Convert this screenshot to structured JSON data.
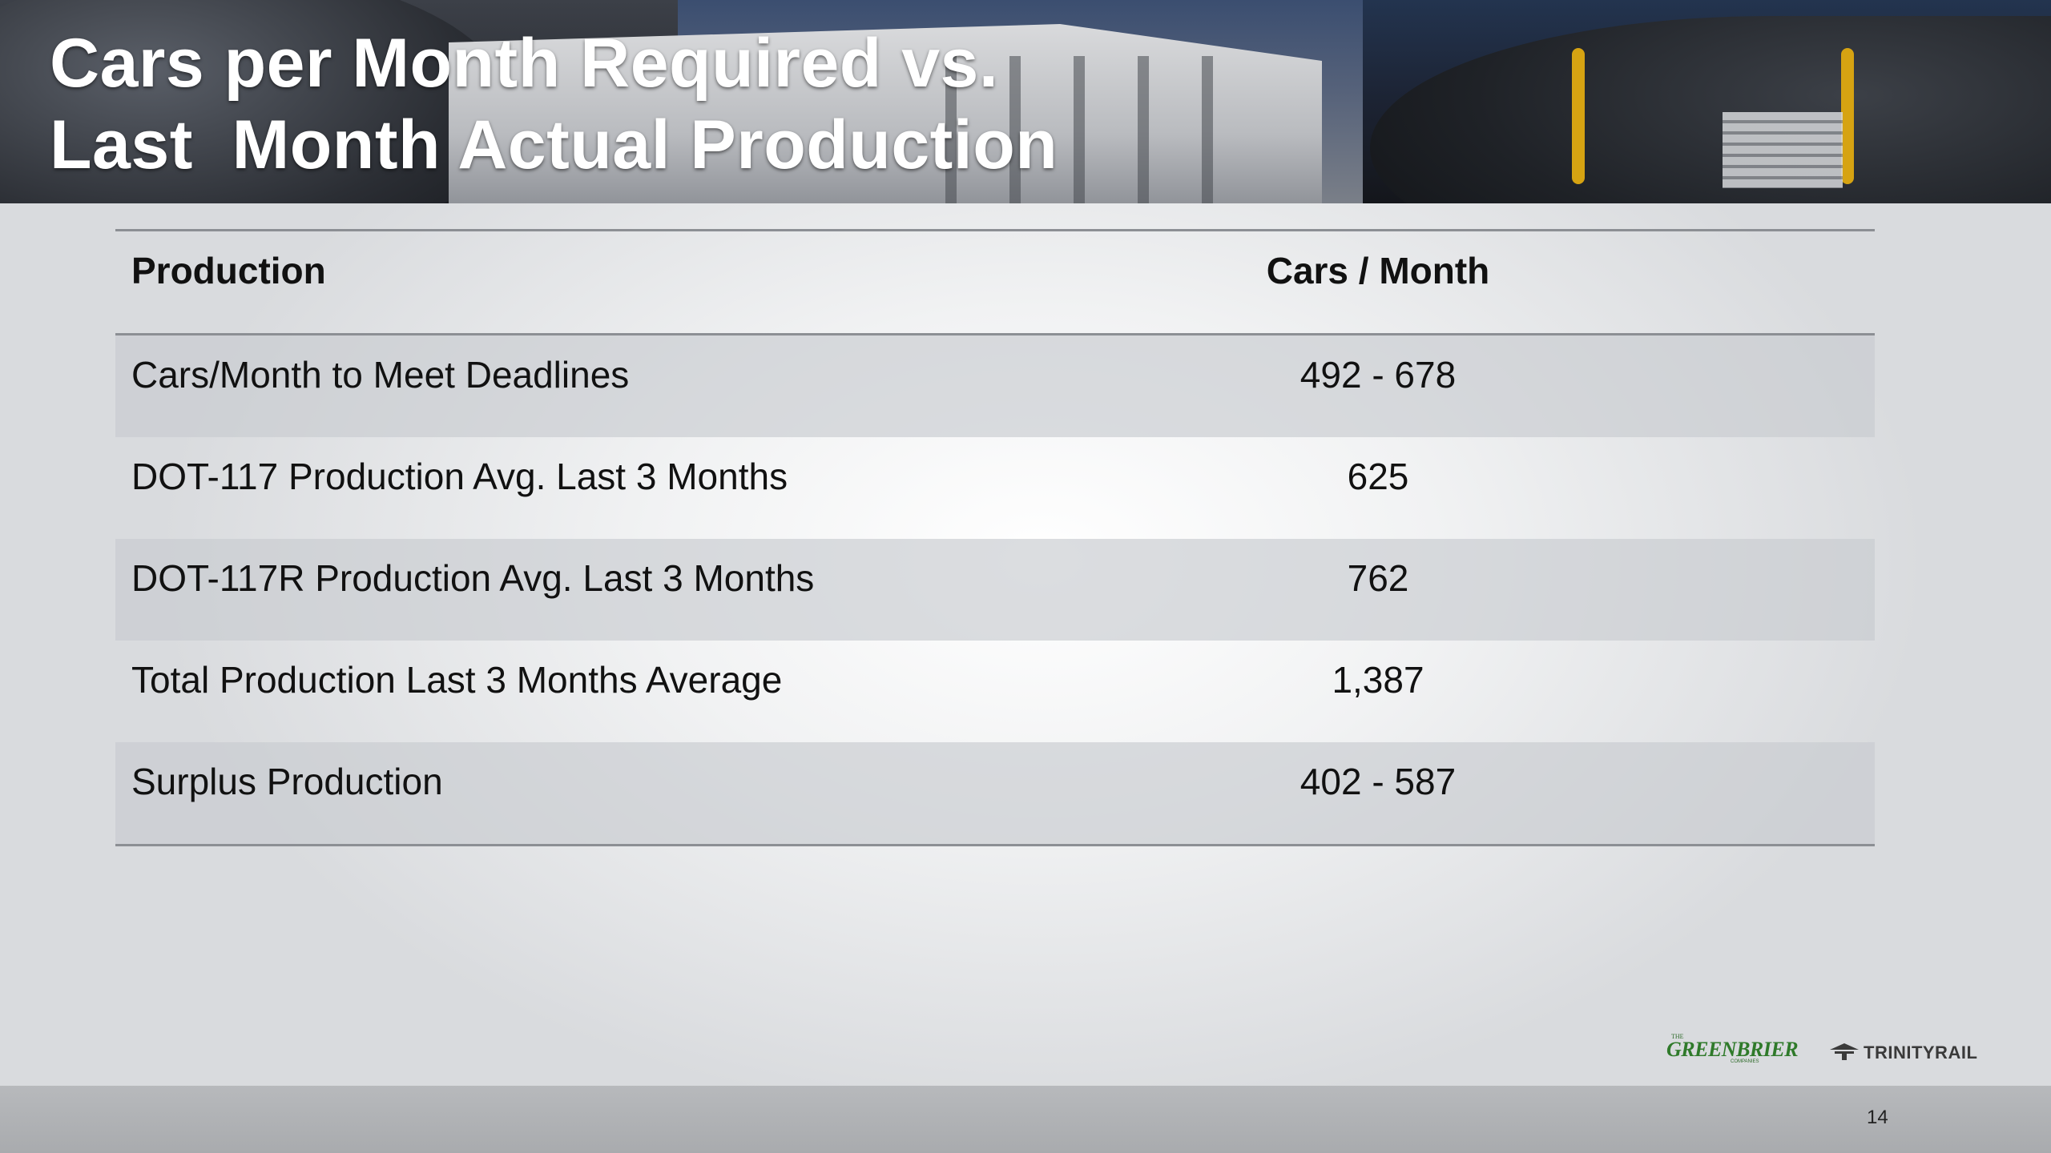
{
  "slide": {
    "title_line1": "Cars per Month Required vs.",
    "title_line2": "Last  Month Actual Production",
    "page_number": "14"
  },
  "table": {
    "headers": {
      "label": "Production",
      "value": "Cars / Month"
    },
    "rows": [
      {
        "label": "Cars/Month to Meet Deadlines",
        "value": "492 - 678"
      },
      {
        "label": "DOT-117 Production Avg. Last 3 Months",
        "value": "625"
      },
      {
        "label": "DOT-117R Production Avg. Last 3 Months",
        "value": "762"
      },
      {
        "label": "Total Production Last 3 Months Average",
        "value": "1,387"
      },
      {
        "label": "Surplus Production",
        "value": "402 - 587"
      }
    ]
  },
  "logos": {
    "greenbrier_small": "THE",
    "greenbrier": "GREENBRIER",
    "greenbrier_sub": "COMPANIES",
    "trinity": "TRINITYRAIL"
  },
  "colors": {
    "greenbrier_green": "#2f7a2a",
    "rule_gray": "#8c8f94",
    "row_shade": "#c8cbcf",
    "title_text": "#ffffff"
  }
}
